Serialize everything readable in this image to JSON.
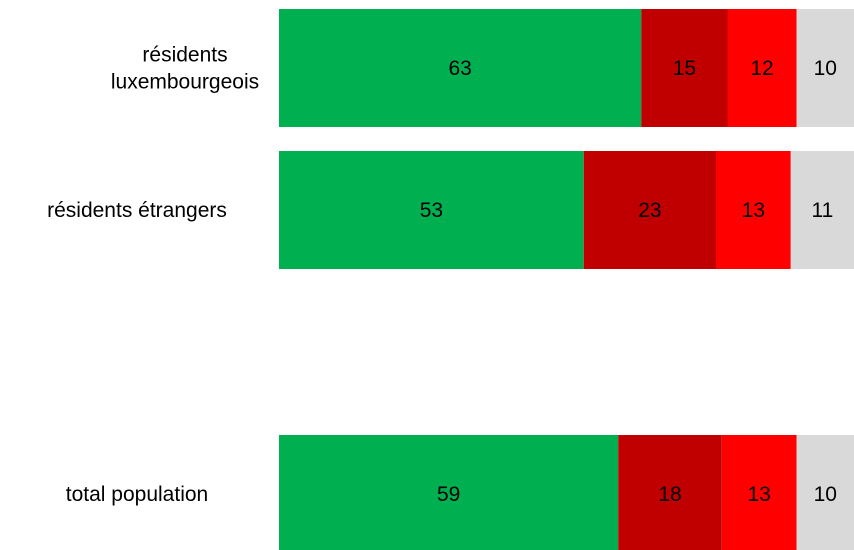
{
  "chart_data": {
    "type": "bar",
    "orientation": "horizontal",
    "stacked": true,
    "categories": [
      [
        "résidents",
        "luxembourgeois"
      ],
      [
        "résidents étrangers"
      ],
      [
        "total population"
      ]
    ],
    "series": [
      {
        "values": [
          63,
          53,
          59
        ],
        "color": "#00b050"
      },
      {
        "values": [
          15,
          23,
          18
        ],
        "color": "#c00000"
      },
      {
        "values": [
          12,
          13,
          13
        ],
        "color": "#ff0000"
      },
      {
        "values": [
          10,
          11,
          10
        ],
        "color": "#d9d9d9"
      }
    ],
    "xlim": [
      0,
      100
    ],
    "grid": false,
    "legend": "none"
  }
}
